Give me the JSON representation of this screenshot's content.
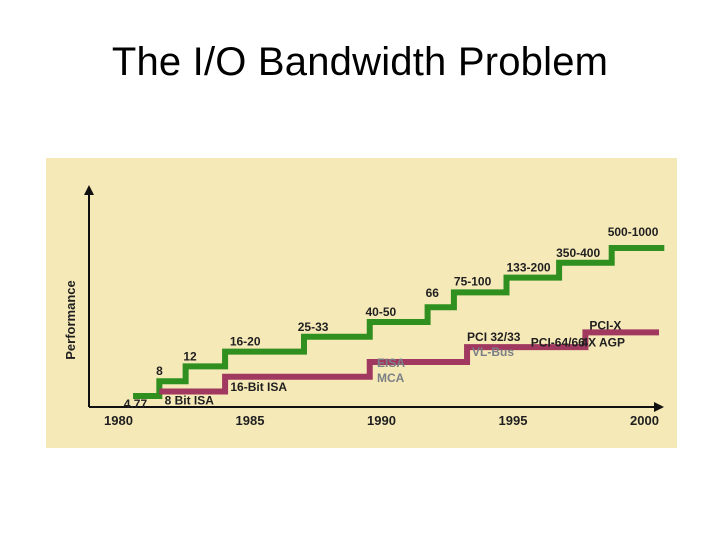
{
  "slide": {
    "title": "The I/O Bandwidth Problem"
  },
  "colors": {
    "background": "#f6e9b8",
    "performance_line": "#2f8f1f",
    "bus_line": "#a0385f",
    "text": "#1f1f1f",
    "gray_text": "#7a7f86",
    "axis": "#111111"
  },
  "chart_data": {
    "type": "line",
    "title": "",
    "xlabel": "",
    "ylabel": "Performance",
    "x_ticks": [
      "1980",
      "1985",
      "1990",
      "1995",
      "2000"
    ],
    "xlim": [
      1980,
      2001
    ],
    "grid": false,
    "series": [
      {
        "values": [
          {
            "x": 1980.8,
            "y": 1
          },
          {
            "x": 1981.8,
            "y": 2
          },
          {
            "x": 1982.8,
            "y": 3
          },
          {
            "x": 1984.3,
            "y": 4
          },
          {
            "x": 1987.3,
            "y": 5
          },
          {
            "x": 1989.8,
            "y": 6
          },
          {
            "x": 1992.0,
            "y": 7
          },
          {
            "x": 1993.0,
            "y": 8
          },
          {
            "x": 1995.0,
            "y": 9
          },
          {
            "x": 1997.0,
            "y": 10
          },
          {
            "x": 1999.0,
            "y": 11
          },
          {
            "x": 2001.0,
            "y": 11
          }
        ],
        "labels": [
          {
            "text": "4.77",
            "x": 1980.6,
            "y": 1
          },
          {
            "text": "8",
            "x": 1981.6,
            "y": 2
          },
          {
            "text": "12",
            "x": 1982.6,
            "y": 3
          },
          {
            "text": "16-20",
            "x": 1984.1,
            "y": 4
          },
          {
            "text": "25-33",
            "x": 1987.1,
            "y": 5
          },
          {
            "text": "40-50",
            "x": 1989.6,
            "y": 6
          },
          {
            "text": "66",
            "x": 1992.0,
            "y": 7
          },
          {
            "text": "75-100",
            "x": 1993.0,
            "y": 8
          },
          {
            "text": "133-200",
            "x": 1995.0,
            "y": 9
          },
          {
            "text": "350-400",
            "x": 1997.0,
            "y": 10
          },
          {
            "text": "500-1000",
            "x": 1999.0,
            "y": 11
          }
        ]
      },
      {
        "values": [
          {
            "x": 1981.8,
            "y": 1.3
          },
          {
            "x": 1984.3,
            "y": 2.3
          },
          {
            "x": 1989.8,
            "y": 3.3
          },
          {
            "x": 1993.5,
            "y": 4.3
          },
          {
            "x": 1998.0,
            "y": 5.3
          },
          {
            "x": 2000.8,
            "y": 5.3
          }
        ],
        "labels": [
          {
            "text": "8 Bit ISA",
            "x": 1982.0,
            "y": 1.3
          },
          {
            "text": "16-Bit ISA",
            "x": 1984.5,
            "y": 2.3
          },
          {
            "text": "EISA",
            "x": 1990.0,
            "y": 3.3
          },
          {
            "text": "MCA",
            "x": 1990.0,
            "y": 3.3
          },
          {
            "text": "PCI 32/33",
            "x": 1993.5,
            "y": 4.3
          },
          {
            "text": "VL-Bus",
            "x": 1993.5,
            "y": 4.3
          },
          {
            "text": "PCI-64/66",
            "x": 1996.0,
            "y": 5.3
          },
          {
            "text": "4X AGP",
            "x": 1998.0,
            "y": 5.3
          },
          {
            "text": "PCI-X",
            "x": 1998.0,
            "y": 5.3
          }
        ]
      }
    ]
  }
}
